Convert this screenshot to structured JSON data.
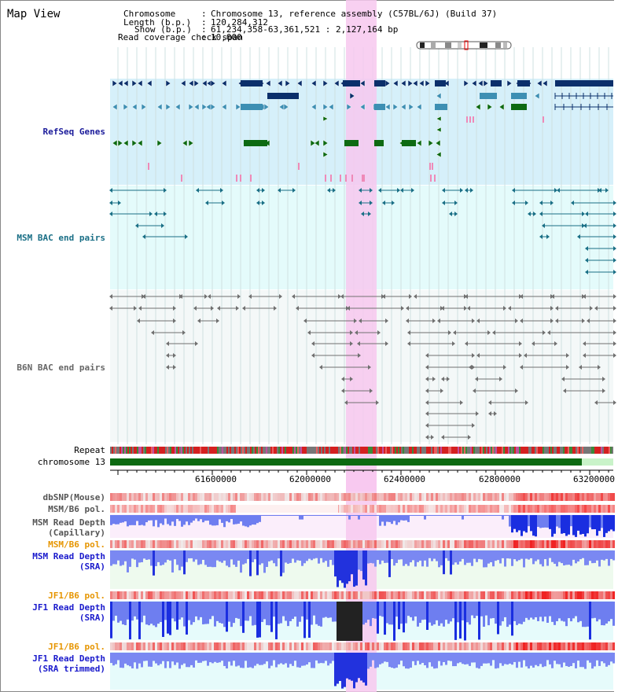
{
  "header": {
    "title": "Map View",
    "chromosome_key": "Chromosome",
    "chromosome_value": "Chromosome 13, reference assembly (C57BL/6J) (Build 37)",
    "length_key": "Length (b.p.)",
    "length_value": "120,284,312",
    "show_key": "Show (b.p.)",
    "show_value": "61,234,358-63,361,521 : 2,127,164 bp",
    "coverage_key": "Read coverage check span",
    "coverage_value": "10,000"
  },
  "tracks": {
    "refseq": "RefSeq Genes",
    "msm_bac": "MSM BAC end pairs",
    "b6n_bac": "B6N BAC end pairs",
    "repeat": "Repeat",
    "chromosome": "chromosome 13",
    "dbsnp": "dbSNP(Mouse)",
    "msm_b6_pol_1": "MSM/B6 pol.",
    "msm_depth_cap_1": "MSM Read Depth",
    "msm_depth_cap_2": "(Capillary)",
    "msm_b6_pol_2": "MSM/B6 pol.",
    "msm_depth_sra_1": "MSM Read Depth",
    "msm_depth_sra_2": "(SRA)",
    "jf1_b6_pol_1": "JF1/B6 pol.",
    "jf1_depth_sra_1": "JF1 Read Depth",
    "jf1_depth_sra_2": "(SRA)",
    "jf1_b6_pol_2": "JF1/B6 pol.",
    "jf1_depth_trim_1": "JF1 Read Depth",
    "jf1_depth_trim_2": "(SRA trimmed)"
  },
  "ruler": {
    "ticks": [
      "61600000",
      "62000000",
      "62400000",
      "62800000",
      "63200000"
    ]
  },
  "colors": {
    "highlight": "#f7c8ef",
    "refseq_bg": "#d6f0fa",
    "msm_bg": "#e4fbfb",
    "b6n_bg": "#f4f8f8",
    "gene_navy": "#0b2f6b",
    "gene_teal": "#3d8fb3",
    "gene_green": "#0d6a12",
    "bac_teal": "#1a6f86",
    "bac_gray": "#707070",
    "depth_blue": "#3344ee",
    "snp_red": "#e83030"
  }
}
